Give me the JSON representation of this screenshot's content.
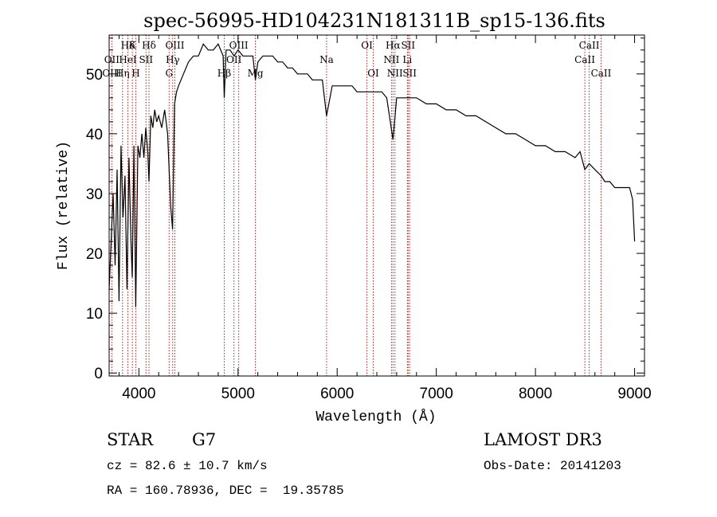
{
  "chart_data": {
    "type": "line",
    "title": "spec-56995-HD104231N181311B_sp15-136.fits",
    "xlabel": "Wavelength (Å)",
    "ylabel": "Flux (relative)",
    "xlim": [
      3700,
      9100
    ],
    "ylim": [
      -0.5,
      56.5
    ],
    "xticks": [
      4000,
      5000,
      6000,
      7000,
      8000,
      9000
    ],
    "yticks": [
      0,
      10,
      20,
      30,
      40,
      50
    ],
    "grid": false,
    "series": [
      {
        "x": [
          3700,
          3720,
          3740,
          3760,
          3780,
          3800,
          3820,
          3840,
          3860,
          3880,
          3900,
          3920,
          3933,
          3950,
          3968,
          3990,
          4010,
          4030,
          4050,
          4070,
          4090,
          4102,
          4120,
          4140,
          4160,
          4180,
          4200,
          4230,
          4260,
          4290,
          4320,
          4340,
          4360,
          4380,
          4400,
          4450,
          4500,
          4550,
          4600,
          4650,
          4700,
          4750,
          4800,
          4850,
          4861,
          4880,
          4920,
          4960,
          5000,
          5050,
          5100,
          5150,
          5175,
          5200,
          5250,
          5300,
          5350,
          5400,
          5450,
          5500,
          5550,
          5600,
          5650,
          5700,
          5750,
          5800,
          5850,
          5893,
          5950,
          6000,
          6050,
          6100,
          6150,
          6200,
          6250,
          6300,
          6350,
          6400,
          6450,
          6500,
          6563,
          6600,
          6650,
          6700,
          6750,
          6800,
          6900,
          7000,
          7100,
          7200,
          7300,
          7400,
          7500,
          7600,
          7700,
          7800,
          7900,
          8000,
          8100,
          8200,
          8300,
          8400,
          8450,
          8498,
          8542,
          8600,
          8662,
          8700,
          8750,
          8800,
          8850,
          8900,
          8950,
          8980,
          9000
        ],
        "y": [
          14,
          22,
          30,
          18,
          34,
          12,
          38,
          26,
          33,
          14,
          36,
          22,
          16,
          38,
          11,
          38,
          36,
          40,
          36,
          41,
          37,
          32,
          43,
          41,
          44,
          42,
          43,
          41,
          44,
          40,
          28,
          24,
          45,
          47,
          48,
          50,
          52,
          53,
          53,
          55,
          54,
          54,
          55,
          53,
          46,
          54,
          54,
          53,
          54,
          53,
          53,
          53,
          49,
          52,
          53,
          53,
          53,
          52,
          52,
          51,
          51,
          50,
          50,
          50,
          49,
          49,
          49,
          43,
          48,
          48,
          48,
          48,
          48,
          47,
          47,
          47,
          47,
          47,
          47,
          46,
          39,
          46,
          46,
          46,
          46,
          46,
          45,
          45,
          44,
          44,
          43,
          43,
          42,
          41,
          40,
          40,
          39,
          38,
          38,
          37,
          37,
          36,
          37,
          34,
          35,
          34,
          33,
          32,
          32,
          31,
          31,
          31,
          31,
          29,
          22
        ]
      }
    ],
    "line_labels": [
      {
        "name": "Hδ",
        "wave": 3889,
        "row": 0
      },
      {
        "name": "OII",
        "wave": 3727,
        "row": 1
      },
      {
        "name": "OIII",
        "wave": 3727,
        "row": 2
      },
      {
        "name": "K",
        "wave": 3934,
        "row": 0
      },
      {
        "name": "HeI",
        "wave": 3889,
        "row": 1
      },
      {
        "name": "Hη",
        "wave": 3835,
        "row": 2
      },
      {
        "name": "H",
        "wave": 3969,
        "row": 2
      },
      {
        "name": "Hδ",
        "wave": 4102,
        "row": 0
      },
      {
        "name": "SII",
        "wave": 4072,
        "row": 1
      },
      {
        "name": "OIII",
        "wave": 4363,
        "row": 0
      },
      {
        "name": "Hγ",
        "wave": 4341,
        "row": 1
      },
      {
        "name": "G",
        "wave": 4305,
        "row": 2
      },
      {
        "name": "OIII",
        "wave": 5007,
        "row": 0
      },
      {
        "name": "OII",
        "wave": 4959,
        "row": 1
      },
      {
        "name": "Hβ",
        "wave": 4861,
        "row": 2
      },
      {
        "name": "Mg",
        "wave": 5175,
        "row": 2
      },
      {
        "name": "Na",
        "wave": 5893,
        "row": 1
      },
      {
        "name": "OI",
        "wave": 6300,
        "row": 0
      },
      {
        "name": "OI",
        "wave": 6364,
        "row": 2
      },
      {
        "name": "Hα",
        "wave": 6563,
        "row": 0
      },
      {
        "name": "SII",
        "wave": 6716,
        "row": 0
      },
      {
        "name": "NII",
        "wave": 6548,
        "row": 1
      },
      {
        "name": "Li",
        "wave": 6708,
        "row": 1
      },
      {
        "name": "NII",
        "wave": 6583,
        "row": 2
      },
      {
        "name": "SII",
        "wave": 6731,
        "row": 2
      },
      {
        "name": "CaII",
        "wave": 8542,
        "row": 0
      },
      {
        "name": "CaII",
        "wave": 8498,
        "row": 1
      },
      {
        "name": "CaII",
        "wave": 8662,
        "row": 2
      }
    ]
  },
  "info": {
    "object_class": "STAR",
    "subclass": "G7",
    "survey": "LAMOST DR3",
    "cz_line": "cz = 82.6 ± 10.7 km/s",
    "obs_date": "Obs-Date: 20141203",
    "coords": "RA = 160.78936, DEC =  19.35785"
  }
}
